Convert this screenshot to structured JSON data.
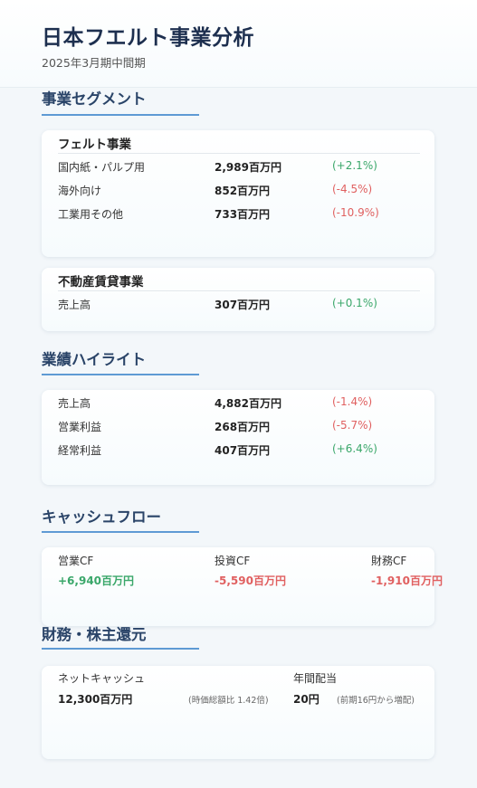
{
  "header": {
    "title": "日本フエルト事業分析",
    "subtitle": "2025年3月期中間期"
  },
  "segments": {
    "heading": "事業セグメント",
    "felt": {
      "title": "フェルト事業",
      "rows": [
        {
          "label": "国内紙・パルプ用",
          "value": "2,989百万円",
          "change": "(+2.1%)",
          "trend": "up"
        },
        {
          "label": "海外向け",
          "value": "852百万円",
          "change": "(-4.5%)",
          "trend": "down"
        },
        {
          "label": "工業用その他",
          "value": "733百万円",
          "change": "(-10.9%)",
          "trend": "down"
        }
      ]
    },
    "realestate": {
      "title": "不動産賃貸事業",
      "rows": [
        {
          "label": "売上高",
          "value": "307百万円",
          "change": "(+0.1%)",
          "trend": "up"
        }
      ]
    }
  },
  "highlights": {
    "heading": "業績ハイライト",
    "rows": [
      {
        "label": "売上高",
        "value": "4,882百万円",
        "change": "(-1.4%)",
        "trend": "down"
      },
      {
        "label": "営業利益",
        "value": "268百万円",
        "change": "(-5.7%)",
        "trend": "down"
      },
      {
        "label": "経常利益",
        "value": "407百万円",
        "change": "(+6.4%)",
        "trend": "up"
      }
    ]
  },
  "cashflow": {
    "heading": "キャッシュフロー",
    "items": [
      {
        "label": "営業CF",
        "value": "+6,940百万円",
        "trend": "up"
      },
      {
        "label": "投資CF",
        "value": "-5,590百万円",
        "trend": "down"
      },
      {
        "label": "財務CF",
        "value": "-1,910百万円",
        "trend": "down"
      }
    ]
  },
  "finance": {
    "heading": "財務・株主還元",
    "net_cash": {
      "label": "ネットキャッシュ",
      "value": "12,300百万円",
      "note": "(時価総額比 1.42倍)"
    },
    "dividend": {
      "label": "年間配当",
      "value": "20円",
      "note": "(前期16円から増配)"
    }
  },
  "colors": {
    "positive": "#3aa76a",
    "negative": "#e06060",
    "accent": "#5e9ad4",
    "heading": "#2a4468"
  }
}
